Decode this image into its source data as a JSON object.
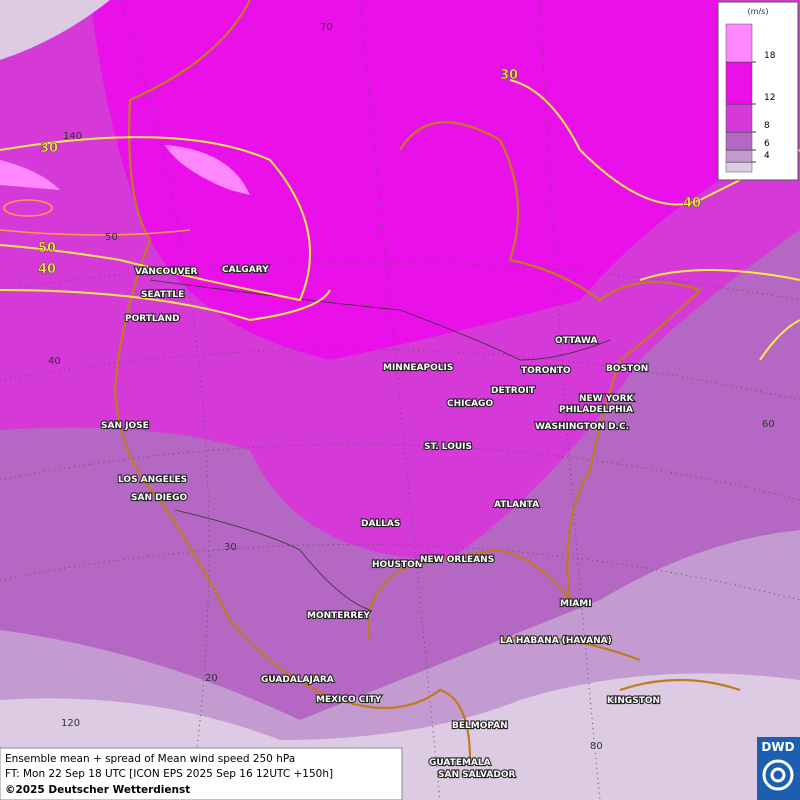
{
  "legend": {
    "unit": "(m/s)",
    "levels": [
      4,
      6,
      8,
      12,
      18
    ],
    "colors": [
      "#dccbe3",
      "#c39bd0",
      "#b567c4",
      "#d53ad8",
      "#ea10ea",
      "#ff88ff"
    ]
  },
  "contour_labels": [
    "30",
    "30",
    "40",
    "50",
    "40"
  ],
  "grid_labels": [
    "70",
    "140",
    "50",
    "40",
    "30",
    "20",
    "120",
    "60",
    "80"
  ],
  "cities": [
    "VANCOUVER",
    "CALGARY",
    "SEATTLE",
    "PORTLAND",
    "SAN JOSE",
    "LOS ANGELES",
    "SAN DIEGO",
    "MINNEAPOLIS",
    "CHICAGO",
    "DETROIT",
    "TORONTO",
    "OTTAWA",
    "BOSTON",
    "NEW YORK",
    "PHILADELPHIA",
    "WASHINGTON D.C.",
    "ST. LOUIS",
    "ATLANTA",
    "DALLAS",
    "HOUSTON",
    "NEW ORLEANS",
    "MIAMI",
    "MONTERREY",
    "LA HABANA (HAVANA)",
    "GUADALAJARA",
    "MEXICO CITY",
    "KINGSTON",
    "BELMOPAN",
    "GUATEMALA",
    "SAN SALVADOR"
  ],
  "footer": {
    "line1": "Ensemble mean + spread of Mean wind speed 250 hPa",
    "line2": "FT: Mon 22 Sep 18 UTC [ICON EPS 2025 Sep 16 12UTC +150h]",
    "line3": "©2025 Deutscher Wetterdienst"
  },
  "logo": "DWD"
}
